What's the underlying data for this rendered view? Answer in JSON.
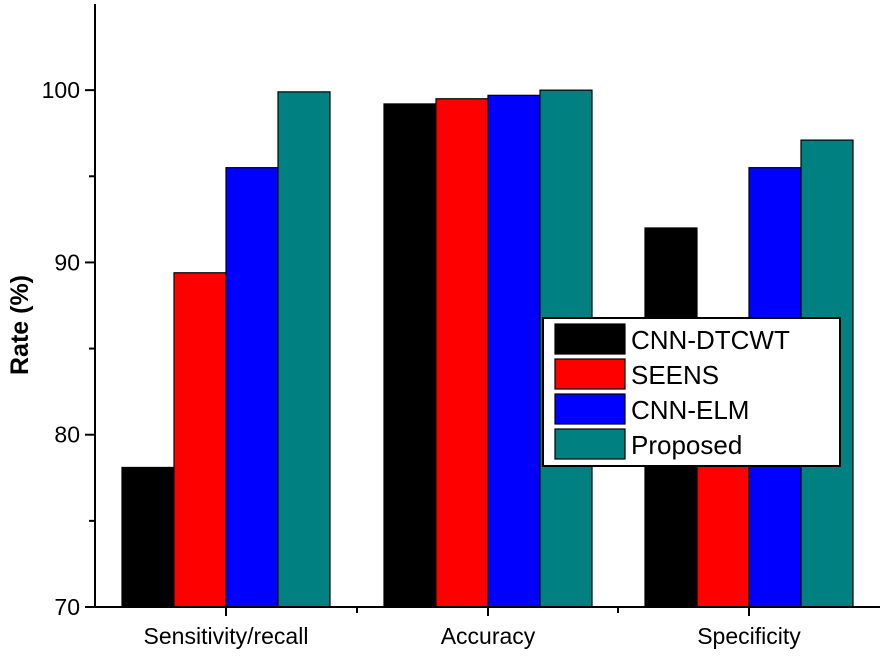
{
  "chart_data": {
    "type": "bar",
    "title": "",
    "xlabel": "",
    "ylabel": "Rate (%)",
    "ylim": [
      70,
      105
    ],
    "yticks": [
      70,
      80,
      90,
      100
    ],
    "grid": false,
    "legend_position": "center-right",
    "categories": [
      "Sensitivity/recall",
      "Accuracy",
      "Specificity"
    ],
    "series": [
      {
        "name": "CNN-DTCWT",
        "color": "#000000",
        "values": [
          78.1,
          99.2,
          92.0
        ]
      },
      {
        "name": "SEENS",
        "color": "#ff0000",
        "values": [
          89.4,
          99.5,
          79.8
        ]
      },
      {
        "name": "CNN-ELM",
        "color": "#0000ff",
        "values": [
          95.5,
          99.7,
          95.5
        ]
      },
      {
        "name": "Proposed",
        "color": "#008080",
        "values": [
          99.9,
          100.0,
          97.1
        ]
      }
    ]
  }
}
